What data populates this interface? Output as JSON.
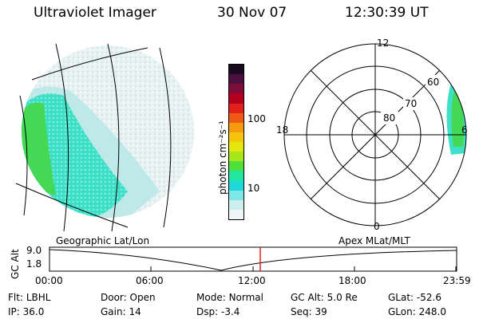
{
  "header": {
    "instrument": "Ultraviolet Imager",
    "date": "30 Nov 07",
    "time": "12:30:39 UT"
  },
  "colorbar": {
    "unit_label": "photon cm⁻²s⁻¹",
    "ticks": [
      "100",
      "10"
    ],
    "colors": [
      "#1a0a1e",
      "#4b0f40",
      "#7d0c3a",
      "#b3001f",
      "#e0201a",
      "#f05a14",
      "#f79a10",
      "#f5c40c",
      "#e6e60f",
      "#a8e61c",
      "#50e03c",
      "#20e6a0",
      "#20d8d8",
      "#7ee6e6",
      "#cdeeee",
      "#f0f6f6"
    ]
  },
  "polar": {
    "lat_labels": [
      "60",
      "70",
      "80"
    ],
    "mlt_labels": {
      "top": "12",
      "left": "18",
      "right": "6",
      "bottom": "0"
    }
  },
  "timeline": {
    "left_caption": "Geographic Lat/Lon",
    "right_caption": "Apex MLat/MLT",
    "axis_label": "GC Alt",
    "y_ticks": [
      "9.0",
      "1.8"
    ],
    "x_ticks": [
      "00:00",
      "06:00",
      "12:00",
      "18:00",
      "23:59"
    ],
    "current_marker_color": "#e02020"
  },
  "info": {
    "row1": [
      {
        "label": "Flt:",
        "value": "LBHL"
      },
      {
        "label": "Door:",
        "value": "Open"
      },
      {
        "label": "Mode:",
        "value": "Normal"
      },
      {
        "label": "GC Alt:",
        "value": "5.0 Re"
      },
      {
        "label": "GLat:",
        "value": "-52.6"
      }
    ],
    "row2": [
      {
        "label": "IP:",
        "value": "36.0"
      },
      {
        "label": "Gain:",
        "value": "14"
      },
      {
        "label": "Dsp:",
        "value": "-3.4"
      },
      {
        "label": "Seq:",
        "value": "39"
      },
      {
        "label": "GLon:",
        "value": "248.0"
      }
    ]
  }
}
